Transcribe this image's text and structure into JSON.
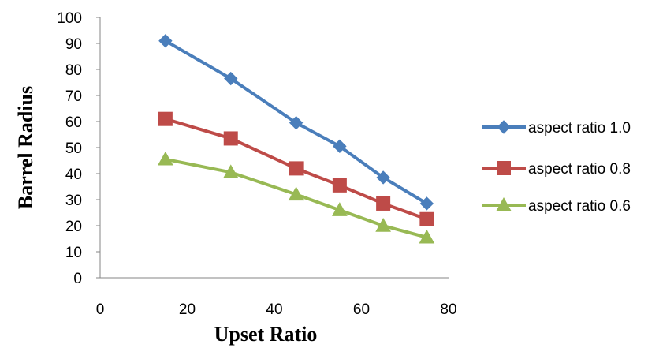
{
  "chart_data": {
    "type": "line",
    "title": "",
    "xlabel": "Upset Ratio",
    "ylabel": "Barrel Radius",
    "xlim": [
      0,
      80
    ],
    "ylim": [
      0,
      100
    ],
    "x_ticks": [
      0,
      20,
      40,
      60,
      80
    ],
    "y_ticks": [
      0,
      10,
      20,
      30,
      40,
      50,
      60,
      70,
      80,
      90,
      100
    ],
    "grid": false,
    "legend_position": "right",
    "x": [
      15,
      30,
      45,
      55,
      65,
      75
    ],
    "series": [
      {
        "name": "aspect ratio 1.0",
        "values": [
          91,
          76.5,
          59.5,
          50.5,
          38.5,
          28.5
        ],
        "color": "#4a7ebb",
        "marker": "diamond"
      },
      {
        "name": "aspect ratio 0.8",
        "values": [
          61,
          53.5,
          42,
          35.5,
          28.5,
          22.5
        ],
        "color": "#be4b48",
        "marker": "square"
      },
      {
        "name": "aspect ratio 0.6",
        "values": [
          45.5,
          40.5,
          32,
          26,
          20,
          15.5
        ],
        "color": "#98b954",
        "marker": "triangle"
      }
    ]
  }
}
